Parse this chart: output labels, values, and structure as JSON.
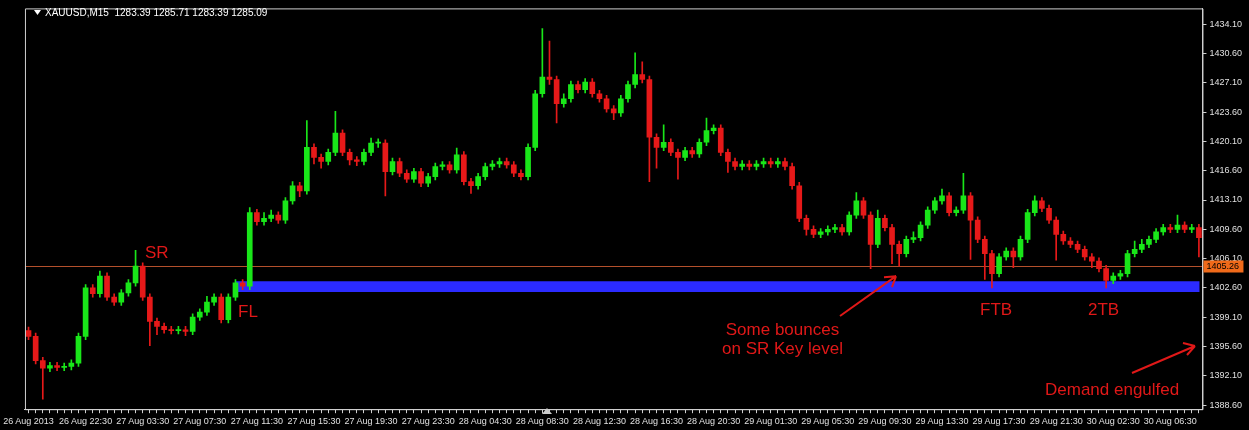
{
  "chart_data": {
    "type": "candlestick",
    "title": "XAUUSD,M15  1283.39 1285.71 1283.39 1285.09",
    "categories": [
      "26 Aug 2013",
      null,
      null,
      null,
      null,
      null,
      null,
      null,
      "26 Aug 22:30",
      null,
      null,
      null,
      null,
      null,
      null,
      null,
      "27 Aug 03:30",
      null,
      null,
      null,
      null,
      null,
      null,
      null,
      "27 Aug 07:30",
      null,
      null,
      null,
      null,
      null,
      null,
      null,
      "27 Aug 11:30",
      null,
      null,
      null,
      null,
      null,
      null,
      null,
      "27 Aug 15:30",
      null,
      null,
      null,
      null,
      null,
      null,
      null,
      "27 Aug 19:30",
      null,
      null,
      null,
      null,
      null,
      null,
      null,
      "27 Aug 23:30",
      null,
      null,
      null,
      null,
      null,
      null,
      null,
      "28 Aug 04:30",
      null,
      null,
      null,
      null,
      null,
      null,
      null,
      "28 Aug 08:30",
      null,
      null,
      null,
      null,
      null,
      null,
      null,
      "28 Aug 12:30",
      null,
      null,
      null,
      null,
      null,
      null,
      null,
      "28 Aug 16:30",
      null,
      null,
      null,
      null,
      null,
      null,
      null,
      "28 Aug 20:30",
      null,
      null,
      null,
      null,
      null,
      null,
      null,
      "29 Aug 01:30",
      null,
      null,
      null,
      null,
      null,
      null,
      null,
      "29 Aug 05:30",
      null,
      null,
      null,
      null,
      null,
      null,
      null,
      "29 Aug 09:30",
      null,
      null,
      null,
      null,
      null,
      null,
      null,
      "29 Aug 13:30",
      null,
      null,
      null,
      null,
      null,
      null,
      null,
      "29 Aug 17:30",
      null,
      null,
      null,
      null,
      null,
      null,
      null,
      "29 Aug 21:30",
      null,
      null,
      null,
      null,
      null,
      null,
      null,
      "30 Aug 02:30",
      null,
      null,
      null,
      null,
      null,
      null,
      null,
      "30 Aug 06:30",
      null,
      null,
      null,
      null
    ],
    "ohlc": [
      [
        1397.5,
        1397.9,
        1396.4,
        1396.8
      ],
      [
        1396.8,
        1397.2,
        1393.5,
        1393.9
      ],
      [
        1393.9,
        1394.3,
        1389.3,
        1393.0
      ],
      [
        1393.0,
        1393.7,
        1392.6,
        1393.3
      ],
      [
        1393.3,
        1393.7,
        1392.7,
        1393.1
      ],
      [
        1393.1,
        1393.6,
        1392.7,
        1393.2
      ],
      [
        1393.2,
        1394.0,
        1392.8,
        1393.6
      ],
      [
        1393.6,
        1397.2,
        1393.2,
        1396.8
      ],
      [
        1396.8,
        1403.0,
        1396.4,
        1402.6
      ],
      [
        1402.6,
        1403.0,
        1401.5,
        1401.9
      ],
      [
        1401.9,
        1404.6,
        1401.5,
        1404.0
      ],
      [
        1404.0,
        1404.4,
        1401.1,
        1401.5
      ],
      [
        1401.5,
        1401.9,
        1400.5,
        1400.9
      ],
      [
        1400.9,
        1402.4,
        1400.5,
        1402.0
      ],
      [
        1402.0,
        1403.6,
        1401.6,
        1403.2
      ],
      [
        1403.2,
        1407.1,
        1402.8,
        1405.2
      ],
      [
        1405.2,
        1405.6,
        1401.1,
        1401.5
      ],
      [
        1401.5,
        1401.9,
        1395.7,
        1398.6
      ],
      [
        1398.6,
        1399.0,
        1397.0,
        1398.0
      ],
      [
        1398.0,
        1398.4,
        1397.2,
        1397.6
      ],
      [
        1397.6,
        1398.0,
        1397.1,
        1397.5
      ],
      [
        1397.5,
        1398.0,
        1397.1,
        1397.6
      ],
      [
        1397.6,
        1398.0,
        1396.9,
        1397.4
      ],
      [
        1397.4,
        1399.5,
        1397.0,
        1399.1
      ],
      [
        1399.1,
        1400.1,
        1398.7,
        1399.7
      ],
      [
        1399.7,
        1401.6,
        1399.3,
        1400.9
      ],
      [
        1400.9,
        1401.9,
        1400.5,
        1401.5
      ],
      [
        1401.5,
        1401.9,
        1398.4,
        1398.8
      ],
      [
        1398.8,
        1401.9,
        1398.4,
        1401.5
      ],
      [
        1401.5,
        1403.6,
        1401.1,
        1403.2
      ],
      [
        1403.2,
        1403.6,
        1402.4,
        1402.8
      ],
      [
        1402.8,
        1412.2,
        1402.4,
        1411.6
      ],
      [
        1411.6,
        1412.0,
        1410.1,
        1410.5
      ],
      [
        1410.5,
        1411.6,
        1410.1,
        1410.9
      ],
      [
        1410.9,
        1411.9,
        1410.5,
        1411.3
      ],
      [
        1411.3,
        1411.7,
        1410.3,
        1410.7
      ],
      [
        1410.7,
        1413.4,
        1410.3,
        1413.0
      ],
      [
        1413.0,
        1415.3,
        1412.6,
        1414.8
      ],
      [
        1414.8,
        1415.2,
        1413.5,
        1414.2
      ],
      [
        1414.2,
        1422.6,
        1413.8,
        1419.4
      ],
      [
        1419.4,
        1419.8,
        1417.4,
        1418.2
      ],
      [
        1418.2,
        1418.6,
        1416.9,
        1417.7
      ],
      [
        1417.7,
        1419.2,
        1417.3,
        1418.8
      ],
      [
        1418.8,
        1423.7,
        1418.4,
        1421.1
      ],
      [
        1421.1,
        1421.5,
        1418.4,
        1418.8
      ],
      [
        1418.8,
        1419.2,
        1417.3,
        1417.9
      ],
      [
        1417.9,
        1418.3,
        1417.2,
        1417.7
      ],
      [
        1417.7,
        1419.2,
        1417.3,
        1418.8
      ],
      [
        1418.8,
        1420.5,
        1418.4,
        1419.9
      ],
      [
        1419.9,
        1420.4,
        1419.4,
        1419.9
      ],
      [
        1419.9,
        1420.3,
        1413.6,
        1416.5
      ],
      [
        1416.5,
        1418.1,
        1416.1,
        1417.7
      ],
      [
        1417.7,
        1418.1,
        1415.9,
        1416.3
      ],
      [
        1416.3,
        1416.7,
        1415.2,
        1415.6
      ],
      [
        1415.6,
        1416.9,
        1415.2,
        1416.5
      ],
      [
        1416.5,
        1416.9,
        1414.7,
        1415.1
      ],
      [
        1415.1,
        1416.3,
        1414.7,
        1415.9
      ],
      [
        1415.9,
        1417.5,
        1415.5,
        1417.1
      ],
      [
        1417.1,
        1417.7,
        1416.7,
        1417.3
      ],
      [
        1417.3,
        1417.7,
        1416.3,
        1416.7
      ],
      [
        1416.7,
        1419.3,
        1416.3,
        1418.5
      ],
      [
        1418.5,
        1418.9,
        1414.9,
        1415.3
      ],
      [
        1415.3,
        1415.7,
        1413.9,
        1414.8
      ],
      [
        1414.8,
        1416.3,
        1414.4,
        1415.9
      ],
      [
        1415.9,
        1417.5,
        1415.5,
        1417.1
      ],
      [
        1417.1,
        1417.8,
        1416.7,
        1417.4
      ],
      [
        1417.4,
        1418.1,
        1417.0,
        1417.7
      ],
      [
        1417.7,
        1418.1,
        1416.9,
        1417.3
      ],
      [
        1417.3,
        1417.7,
        1415.9,
        1416.3
      ],
      [
        1416.3,
        1416.7,
        1415.5,
        1415.9
      ],
      [
        1415.9,
        1419.8,
        1415.5,
        1419.4
      ],
      [
        1419.4,
        1426.2,
        1419.0,
        1425.8
      ],
      [
        1425.8,
        1433.6,
        1425.4,
        1427.8
      ],
      [
        1427.8,
        1432.1,
        1426.9,
        1427.5
      ],
      [
        1427.5,
        1427.9,
        1422.3,
        1424.6
      ],
      [
        1424.6,
        1425.8,
        1424.2,
        1425.2
      ],
      [
        1425.2,
        1427.3,
        1424.8,
        1426.9
      ],
      [
        1426.9,
        1427.3,
        1425.9,
        1426.3
      ],
      [
        1426.3,
        1427.6,
        1425.9,
        1427.2
      ],
      [
        1427.2,
        1427.6,
        1425.4,
        1425.8
      ],
      [
        1425.8,
        1426.2,
        1424.8,
        1425.2
      ],
      [
        1425.2,
        1425.6,
        1423.6,
        1424.0
      ],
      [
        1424.0,
        1424.4,
        1422.7,
        1423.5
      ],
      [
        1423.5,
        1425.6,
        1423.1,
        1425.2
      ],
      [
        1425.2,
        1427.3,
        1424.8,
        1426.9
      ],
      [
        1426.9,
        1430.7,
        1426.5,
        1428.1
      ],
      [
        1428.1,
        1429.6,
        1427.1,
        1427.5
      ],
      [
        1427.5,
        1427.9,
        1415.3,
        1420.6
      ],
      [
        1420.6,
        1421.0,
        1416.9,
        1419.4
      ],
      [
        1419.4,
        1422.1,
        1419.0,
        1420.0
      ],
      [
        1420.0,
        1420.4,
        1418.4,
        1418.8
      ],
      [
        1418.8,
        1419.2,
        1415.6,
        1418.2
      ],
      [
        1418.2,
        1419.4,
        1417.8,
        1419.0
      ],
      [
        1419.0,
        1419.4,
        1418.2,
        1418.6
      ],
      [
        1418.6,
        1420.4,
        1418.2,
        1420.0
      ],
      [
        1420.0,
        1422.9,
        1419.6,
        1421.4
      ],
      [
        1421.4,
        1422.1,
        1421.0,
        1421.7
      ],
      [
        1421.7,
        1422.1,
        1418.4,
        1418.8
      ],
      [
        1418.8,
        1419.2,
        1416.4,
        1417.7
      ],
      [
        1417.7,
        1418.1,
        1416.7,
        1417.1
      ],
      [
        1417.1,
        1417.8,
        1416.7,
        1417.4
      ],
      [
        1417.4,
        1417.8,
        1416.7,
        1417.1
      ],
      [
        1417.1,
        1417.8,
        1416.7,
        1417.4
      ],
      [
        1417.4,
        1418.1,
        1417.0,
        1417.7
      ],
      [
        1417.7,
        1418.1,
        1417.0,
        1417.4
      ],
      [
        1417.4,
        1418.1,
        1417.0,
        1417.7
      ],
      [
        1417.7,
        1418.1,
        1416.7,
        1417.1
      ],
      [
        1417.1,
        1417.5,
        1414.4,
        1414.8
      ],
      [
        1414.8,
        1415.2,
        1410.5,
        1410.9
      ],
      [
        1410.9,
        1411.3,
        1408.9,
        1409.6
      ],
      [
        1409.6,
        1410.0,
        1408.6,
        1409.0
      ],
      [
        1409.0,
        1409.7,
        1408.6,
        1409.3
      ],
      [
        1409.3,
        1410.0,
        1408.9,
        1409.6
      ],
      [
        1409.6,
        1410.2,
        1409.2,
        1409.8
      ],
      [
        1409.8,
        1410.2,
        1408.9,
        1409.3
      ],
      [
        1409.3,
        1411.7,
        1408.9,
        1411.3
      ],
      [
        1411.3,
        1414.0,
        1410.9,
        1413.0
      ],
      [
        1413.0,
        1413.4,
        1410.9,
        1411.3
      ],
      [
        1411.3,
        1411.7,
        1404.9,
        1407.8
      ],
      [
        1407.8,
        1411.9,
        1407.4,
        1410.9
      ],
      [
        1410.9,
        1411.3,
        1409.4,
        1409.8
      ],
      [
        1409.8,
        1410.2,
        1405.5,
        1407.8
      ],
      [
        1407.8,
        1408.2,
        1405.2,
        1406.7
      ],
      [
        1406.7,
        1408.8,
        1406.3,
        1408.4
      ],
      [
        1408.4,
        1409.3,
        1408.0,
        1408.6
      ],
      [
        1408.6,
        1410.5,
        1408.2,
        1410.1
      ],
      [
        1410.1,
        1412.3,
        1409.7,
        1411.9
      ],
      [
        1411.9,
        1413.4,
        1411.5,
        1413.0
      ],
      [
        1413.0,
        1414.4,
        1412.6,
        1413.6
      ],
      [
        1413.6,
        1414.0,
        1411.2,
        1411.6
      ],
      [
        1411.6,
        1412.3,
        1411.2,
        1411.9
      ],
      [
        1411.9,
        1416.3,
        1411.5,
        1413.6
      ],
      [
        1413.6,
        1414.0,
        1406.0,
        1410.7
      ],
      [
        1410.7,
        1411.1,
        1408.0,
        1408.4
      ],
      [
        1408.4,
        1408.8,
        1403.6,
        1406.7
      ],
      [
        1406.7,
        1407.1,
        1402.6,
        1404.3
      ],
      [
        1404.3,
        1406.7,
        1403.9,
        1406.3
      ],
      [
        1406.3,
        1407.4,
        1405.9,
        1407.0
      ],
      [
        1407.0,
        1407.4,
        1405.0,
        1406.3
      ],
      [
        1406.3,
        1408.8,
        1405.9,
        1408.4
      ],
      [
        1408.4,
        1412.0,
        1408.0,
        1411.6
      ],
      [
        1411.6,
        1413.6,
        1411.2,
        1413.0
      ],
      [
        1413.0,
        1413.4,
        1411.7,
        1412.1
      ],
      [
        1412.1,
        1412.5,
        1410.3,
        1410.7
      ],
      [
        1410.7,
        1411.1,
        1405.9,
        1409.0
      ],
      [
        1409.0,
        1409.4,
        1407.8,
        1408.2
      ],
      [
        1408.2,
        1408.6,
        1407.4,
        1407.8
      ],
      [
        1407.8,
        1408.2,
        1406.8,
        1407.2
      ],
      [
        1407.2,
        1407.6,
        1405.9,
        1406.3
      ],
      [
        1406.3,
        1406.7,
        1405.0,
        1405.8
      ],
      [
        1405.8,
        1406.2,
        1404.5,
        1404.9
      ],
      [
        1404.9,
        1405.3,
        1402.6,
        1403.5
      ],
      [
        1403.5,
        1404.4,
        1403.1,
        1404.0
      ],
      [
        1404.0,
        1404.7,
        1403.6,
        1404.3
      ],
      [
        1404.3,
        1407.1,
        1403.9,
        1406.7
      ],
      [
        1406.7,
        1408.2,
        1406.3,
        1407.2
      ],
      [
        1407.2,
        1408.4,
        1406.8,
        1407.8
      ],
      [
        1407.8,
        1408.8,
        1407.4,
        1408.4
      ],
      [
        1408.4,
        1409.7,
        1408.0,
        1409.3
      ],
      [
        1409.3,
        1410.2,
        1408.9,
        1409.8
      ],
      [
        1409.8,
        1410.2,
        1409.2,
        1409.6
      ],
      [
        1409.6,
        1411.3,
        1409.2,
        1410.1
      ],
      [
        1410.1,
        1410.5,
        1409.2,
        1409.6
      ],
      [
        1409.6,
        1410.2,
        1409.2,
        1409.8
      ],
      [
        1409.8,
        1410.2,
        1406.3,
        1408.6
      ]
    ],
    "ylim": [
      1388.1,
      1436.0
    ],
    "yticks": [
      {
        "value": 1388.6,
        "label": "1388.60"
      },
      {
        "value": 1392.1,
        "label": "1392.10"
      },
      {
        "value": 1395.6,
        "label": "1395.60"
      },
      {
        "value": 1399.1,
        "label": "1399.10"
      },
      {
        "value": 1402.6,
        "label": "1402.60"
      },
      {
        "value": 1406.1,
        "label": "1406.10"
      },
      {
        "value": 1409.6,
        "label": "1409.60"
      },
      {
        "value": 1413.1,
        "label": "1413.10"
      },
      {
        "value": 1416.6,
        "label": "1416.60"
      },
      {
        "value": 1420.1,
        "label": "1420.10"
      },
      {
        "value": 1423.6,
        "label": "1423.60"
      },
      {
        "value": 1427.1,
        "label": "1427.10"
      },
      {
        "value": 1430.6,
        "label": "1430.60"
      },
      {
        "value": 1434.1,
        "label": "1434.10"
      }
    ],
    "ref_lines": [
      {
        "axis": "y",
        "value": 1405.26,
        "label": "SR",
        "color": "#b4502c"
      }
    ],
    "bands": [
      {
        "axis": "y",
        "from": 1402.1,
        "to": 1403.4,
        "color": "#2b2bff"
      }
    ],
    "annotations": [
      "FL",
      {
        "text": "Some bounces\non SR Key level",
        "y": 1404.0
      },
      "FTB",
      "2TB",
      "Demand engulfed",
      {
        "text": "1405.26",
        "y": 1405.26
      }
    ],
    "grid": false,
    "legend": false
  }
}
